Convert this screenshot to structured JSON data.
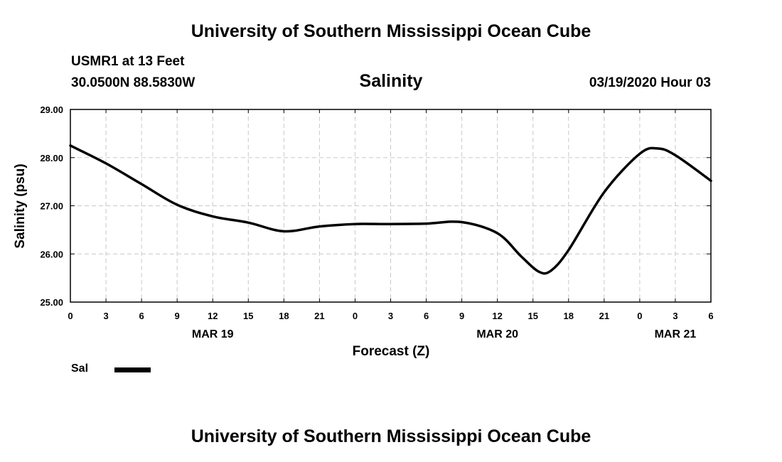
{
  "header": {
    "title_top": "University of Southern Mississippi Ocean Cube",
    "station": "USMR1 at 13 Feet",
    "coords": "30.0500N 88.5830W",
    "datetime": "03/19/2020 Hour 03",
    "title_bottom": "University of Southern Mississippi Ocean Cube"
  },
  "legend": {
    "label": "Sal"
  },
  "chart_data": {
    "type": "line",
    "title": "Salinity",
    "xlabel": "Forecast (Z)",
    "ylabel": "Salinity (psu)",
    "ylim": [
      25.0,
      29.0
    ],
    "yticks": [
      "29.00",
      "28.00",
      "27.00",
      "26.00",
      "25.00"
    ],
    "xlim": [
      0,
      54
    ],
    "xticks": [
      "0",
      "3",
      "6",
      "9",
      "12",
      "15",
      "18",
      "21",
      "0",
      "3",
      "6",
      "9",
      "12",
      "15",
      "18",
      "21",
      "0",
      "3",
      "6"
    ],
    "date_labels": [
      {
        "label": "MAR 19",
        "at": 12
      },
      {
        "label": "MAR 20",
        "at": 36
      },
      {
        "label": "MAR 21",
        "at": 51
      }
    ],
    "grid": true,
    "series": [
      {
        "name": "Sal",
        "color": "#000000",
        "x": [
          0,
          3,
          6,
          9,
          12,
          15,
          18,
          21,
          24,
          27,
          30,
          33,
          36,
          38,
          39.5,
          40.5,
          42,
          45,
          48,
          49.5,
          51,
          54
        ],
        "y": [
          28.25,
          27.88,
          27.45,
          27.02,
          26.78,
          26.65,
          26.47,
          26.57,
          26.62,
          26.62,
          26.63,
          26.66,
          26.43,
          25.95,
          25.63,
          25.65,
          26.08,
          27.28,
          28.08,
          28.19,
          28.05,
          27.52
        ]
      }
    ]
  }
}
